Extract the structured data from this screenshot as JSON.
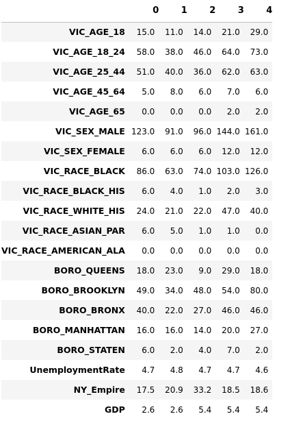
{
  "table": {
    "columns": [
      "0",
      "1",
      "2",
      "3",
      "4"
    ],
    "rows": [
      {
        "label": "VIC_AGE_18",
        "values": [
          "15.0",
          "11.0",
          "14.0",
          "21.0",
          "29.0"
        ]
      },
      {
        "label": "VIC_AGE_18_24",
        "values": [
          "58.0",
          "38.0",
          "46.0",
          "64.0",
          "73.0"
        ]
      },
      {
        "label": "VIC_AGE_25_44",
        "values": [
          "51.0",
          "40.0",
          "36.0",
          "62.0",
          "63.0"
        ]
      },
      {
        "label": "VIC_AGE_45_64",
        "values": [
          "5.0",
          "8.0",
          "6.0",
          "7.0",
          "6.0"
        ]
      },
      {
        "label": "VIC_AGE_65",
        "values": [
          "0.0",
          "0.0",
          "0.0",
          "2.0",
          "2.0"
        ]
      },
      {
        "label": "VIC_SEX_MALE",
        "values": [
          "123.0",
          "91.0",
          "96.0",
          "144.0",
          "161.0"
        ]
      },
      {
        "label": "VIC_SEX_FEMALE",
        "values": [
          "6.0",
          "6.0",
          "6.0",
          "12.0",
          "12.0"
        ]
      },
      {
        "label": "VIC_RACE_BLACK",
        "values": [
          "86.0",
          "63.0",
          "74.0",
          "103.0",
          "126.0"
        ]
      },
      {
        "label": "VIC_RACE_BLACK_HIS",
        "values": [
          "6.0",
          "4.0",
          "1.0",
          "2.0",
          "3.0"
        ]
      },
      {
        "label": "VIC_RACE_WHITE_HIS",
        "values": [
          "24.0",
          "21.0",
          "22.0",
          "47.0",
          "40.0"
        ]
      },
      {
        "label": "VIC_RACE_ASIAN_PAR",
        "values": [
          "6.0",
          "5.0",
          "1.0",
          "1.0",
          "0.0"
        ]
      },
      {
        "label": "VIC_RACE_AMERICAN_ALA",
        "values": [
          "0.0",
          "0.0",
          "0.0",
          "0.0",
          "0.0"
        ]
      },
      {
        "label": "BORO_QUEENS",
        "values": [
          "18.0",
          "23.0",
          "9.0",
          "29.0",
          "18.0"
        ]
      },
      {
        "label": "BORO_BROOKLYN",
        "values": [
          "49.0",
          "34.0",
          "48.0",
          "54.0",
          "80.0"
        ]
      },
      {
        "label": "BORO_BRONX",
        "values": [
          "40.0",
          "22.0",
          "27.0",
          "46.0",
          "46.0"
        ]
      },
      {
        "label": "BORO_MANHATTAN",
        "values": [
          "16.0",
          "16.0",
          "14.0",
          "20.0",
          "27.0"
        ]
      },
      {
        "label": "BORO_STATEN",
        "values": [
          "6.0",
          "2.0",
          "4.0",
          "7.0",
          "2.0"
        ]
      },
      {
        "label": "UnemploymentRate",
        "values": [
          "4.7",
          "4.8",
          "4.7",
          "4.7",
          "4.6"
        ]
      },
      {
        "label": "NY_Empire",
        "values": [
          "17.5",
          "20.9",
          "33.2",
          "18.5",
          "18.6"
        ]
      },
      {
        "label": "GDP",
        "values": [
          "2.6",
          "2.6",
          "5.4",
          "5.4",
          "5.4"
        ]
      }
    ]
  }
}
